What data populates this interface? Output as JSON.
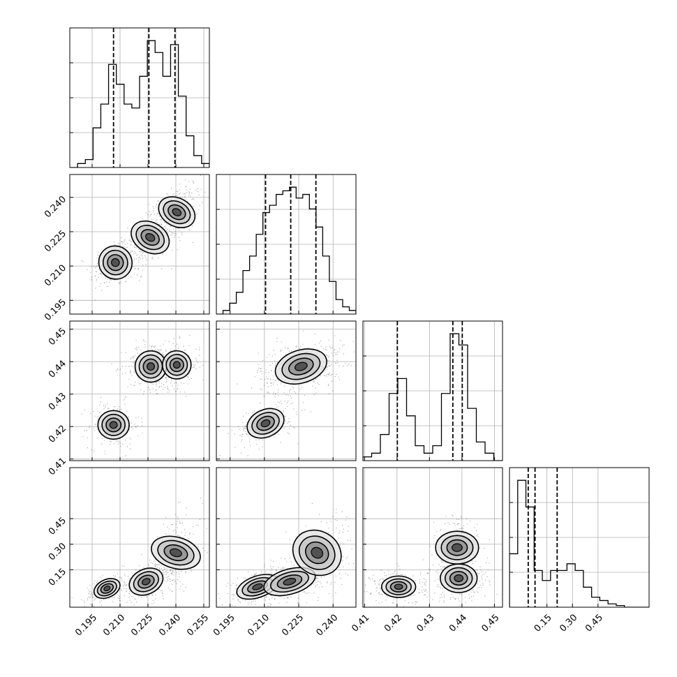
{
  "chart_data": {
    "type": "corner",
    "n_params": 4,
    "ranges": [
      [
        0.183,
        0.258
      ],
      [
        0.189,
        0.25
      ],
      [
        0.4095,
        0.4525
      ],
      [
        -0.07,
        0.75
      ]
    ],
    "axes": [
      {
        "ticks": [
          0.195,
          0.21,
          0.225,
          0.24,
          0.255
        ],
        "labels": [
          "0.195",
          "0.210",
          "0.225",
          "0.240",
          "0.255"
        ]
      },
      {
        "ticks": [
          0.195,
          0.21,
          0.225,
          0.24
        ],
        "labels": [
          "0.195",
          "0.210",
          "0.225",
          "0.240"
        ]
      },
      {
        "ticks": [
          0.41,
          0.42,
          0.43,
          0.44,
          0.45
        ],
        "labels": [
          "0.41",
          "0.42",
          "0.43",
          "0.44",
          "0.45"
        ]
      },
      {
        "ticks": [
          0.15,
          0.3,
          0.45
        ],
        "labels": [
          "0.15",
          "0.30",
          "0.45"
        ]
      }
    ],
    "quantiles": [
      [
        0.2065,
        0.2255,
        0.2395
      ],
      [
        0.2105,
        0.2215,
        0.2325
      ],
      [
        0.4201,
        0.4372,
        0.4401
      ],
      [
        0.04,
        0.08,
        0.21
      ]
    ],
    "histograms": [
      [
        0,
        1,
        2,
        10,
        16,
        26,
        21,
        16,
        15,
        23,
        32,
        29,
        23,
        31,
        18,
        8,
        3,
        1
      ],
      [
        0,
        1,
        3,
        6,
        12,
        16,
        22,
        28,
        30,
        33,
        34,
        35,
        32,
        33,
        29,
        24,
        16,
        9,
        4,
        2,
        1
      ],
      [
        1,
        2,
        7,
        18,
        22,
        12,
        4,
        2,
        4,
        18,
        34,
        31,
        14,
        5,
        2,
        0
      ],
      [
        16,
        38,
        30,
        11,
        8,
        11,
        11,
        13,
        11,
        6,
        3,
        2,
        1,
        0.5,
        0,
        0,
        0
      ]
    ],
    "modes": [
      [
        {
          "x": 0.2075,
          "y": 0.2115,
          "sx": 0.0042,
          "sy": 0.0035,
          "rho": 0.35,
          "w": 0.32
        },
        {
          "x": 0.2262,
          "y": 0.2225,
          "sx": 0.0038,
          "sy": 0.0042,
          "rho": 0.55,
          "w": 0.38
        },
        {
          "x": 0.2405,
          "y": 0.2335,
          "sx": 0.0036,
          "sy": 0.004,
          "rho": 0.5,
          "w": 0.3
        }
      ],
      [
        {
          "x": 0.2065,
          "y": 0.4205,
          "sx": 0.004,
          "sy": 0.0021,
          "rho": 0.0,
          "w": 0.32
        },
        {
          "x": 0.2265,
          "y": 0.4385,
          "sx": 0.004,
          "sy": 0.0023,
          "rho": 0.0,
          "w": 0.38
        },
        {
          "x": 0.2405,
          "y": 0.439,
          "sx": 0.0036,
          "sy": 0.0021,
          "rho": 0.0,
          "w": 0.3
        }
      ],
      [
        {
          "x": 0.2105,
          "y": 0.421,
          "sx": 0.004,
          "sy": 0.002,
          "rho": 0.4,
          "w": 0.32
        },
        {
          "x": 0.226,
          "y": 0.4385,
          "sx": 0.0055,
          "sy": 0.0024,
          "rho": 0.35,
          "w": 0.68
        }
      ],
      [
        {
          "x": 0.203,
          "y": 0.04,
          "sx": 0.0035,
          "sy": 0.025,
          "rho": 0.5,
          "w": 0.3
        },
        {
          "x": 0.224,
          "y": 0.08,
          "sx": 0.0045,
          "sy": 0.035,
          "rho": 0.4,
          "w": 0.4
        },
        {
          "x": 0.24,
          "y": 0.25,
          "sx": 0.004,
          "sy": 0.07,
          "rho": 0.3,
          "w": 0.3
        }
      ],
      [
        {
          "x": 0.207,
          "y": 0.05,
          "sx": 0.0045,
          "sy": 0.03,
          "rho": 0.6,
          "w": 0.3
        },
        {
          "x": 0.221,
          "y": 0.08,
          "sx": 0.0055,
          "sy": 0.035,
          "rho": 0.5,
          "w": 0.4
        },
        {
          "x": 0.233,
          "y": 0.25,
          "sx": 0.0045,
          "sy": 0.07,
          "rho": 0.3,
          "w": 0.3
        }
      ],
      [
        {
          "x": 0.4205,
          "y": 0.05,
          "sx": 0.0025,
          "sy": 0.03,
          "rho": 0.0,
          "w": 0.33
        },
        {
          "x": 0.439,
          "y": 0.1,
          "sx": 0.0027,
          "sy": 0.04,
          "rho": 0.0,
          "w": 0.42
        },
        {
          "x": 0.4385,
          "y": 0.28,
          "sx": 0.0024,
          "sy": 0.06,
          "rho": 0.0,
          "w": 0.25
        }
      ]
    ],
    "grid": true,
    "xlabel": "",
    "ylabel": "",
    "title": ""
  }
}
